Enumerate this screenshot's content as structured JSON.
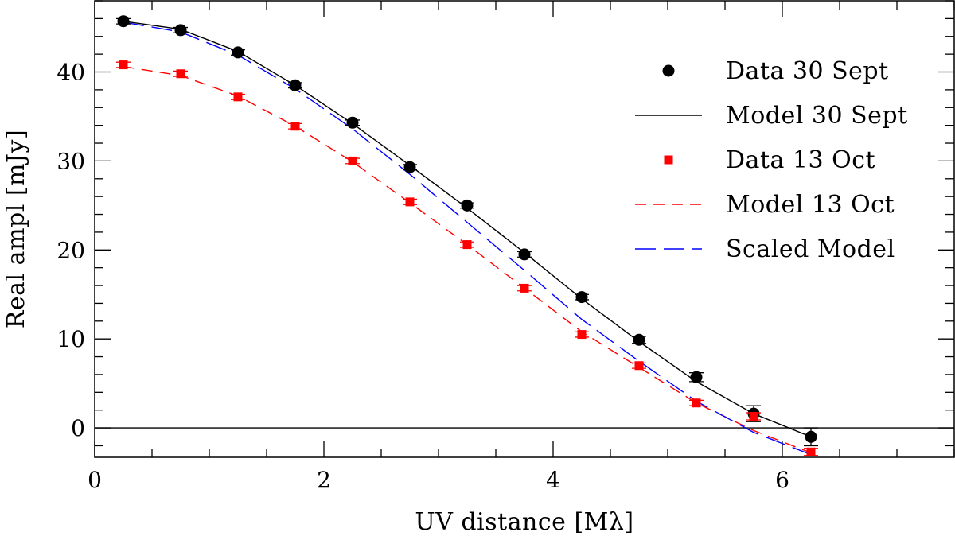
{
  "chart_data": {
    "type": "scatter",
    "xlabel": "UV distance [Mλ]",
    "ylabel": "Real ampl [mJy]",
    "xlim": [
      0,
      7.5
    ],
    "ylim": [
      -3.3,
      48
    ],
    "x_ticks": [
      0,
      2,
      4,
      6
    ],
    "x_tick_labels": [
      "0",
      "2",
      "4",
      "6"
    ],
    "y_ticks": [
      0,
      10,
      20,
      30,
      40
    ],
    "y_tick_labels": [
      "0",
      "10",
      "20",
      "30",
      "40"
    ],
    "reference_line_y": 0,
    "legend_position": "top-right",
    "series": [
      {
        "name": "Data 30 Sept",
        "kind": "points",
        "marker": "circle",
        "color": "#000000",
        "x": [
          0.25,
          0.75,
          1.25,
          1.75,
          2.25,
          2.75,
          3.25,
          3.75,
          4.25,
          4.75,
          5.25,
          5.75,
          6.25
        ],
        "y": [
          45.7,
          44.7,
          42.2,
          38.5,
          34.3,
          29.3,
          25.0,
          19.5,
          14.7,
          9.9,
          5.7,
          1.6,
          -1.0
        ],
        "err": [
          0.3,
          0.3,
          0.3,
          0.3,
          0.3,
          0.3,
          0.3,
          0.3,
          0.3,
          0.4,
          0.5,
          0.9,
          1.0
        ]
      },
      {
        "name": "Model 30 Sept",
        "kind": "line",
        "dash": "solid",
        "color": "#000000",
        "x": [
          0.25,
          0.75,
          1.25,
          1.75,
          2.25,
          2.75,
          3.25,
          3.75,
          4.25,
          4.75,
          5.25,
          5.75,
          6.25
        ],
        "y": [
          45.7,
          44.8,
          42.3,
          38.5,
          34.2,
          29.5,
          24.7,
          19.7,
          14.5,
          9.7,
          5.2,
          1.6,
          -1.0
        ]
      },
      {
        "name": "Data 13 Oct",
        "kind": "points",
        "marker": "square",
        "color": "#ff0000",
        "x": [
          0.25,
          0.75,
          1.25,
          1.75,
          2.25,
          2.75,
          3.25,
          3.75,
          4.25,
          4.75,
          5.25,
          5.75,
          6.25
        ],
        "y": [
          40.8,
          39.8,
          37.2,
          33.9,
          30.0,
          25.4,
          20.6,
          15.7,
          10.5,
          7.0,
          2.8,
          1.3,
          -2.7
        ],
        "err": [
          0.3,
          0.3,
          0.3,
          0.3,
          0.3,
          0.3,
          0.3,
          0.3,
          0.3,
          0.3,
          0.3,
          0.4,
          0.4
        ]
      },
      {
        "name": "Model 13 Oct",
        "kind": "line",
        "dash": "dashed",
        "color": "#ff0000",
        "x": [
          0.25,
          0.75,
          1.25,
          1.75,
          2.25,
          2.75,
          3.25,
          3.75,
          4.25,
          4.75,
          5.25,
          5.75,
          6.25
        ],
        "y": [
          40.6,
          39.6,
          37.3,
          33.9,
          29.9,
          25.3,
          20.6,
          15.7,
          10.8,
          6.8,
          2.8,
          -0.3,
          -2.8
        ]
      },
      {
        "name": "Scaled Model",
        "kind": "line",
        "dash": "long-dashed",
        "color": "#0000ff",
        "x": [
          0.25,
          0.75,
          1.25,
          1.75,
          2.25,
          2.75,
          3.25,
          3.75,
          4.25,
          4.75,
          5.25,
          5.75,
          6.25
        ],
        "y": [
          45.6,
          44.5,
          41.9,
          38.1,
          33.6,
          28.5,
          23.1,
          17.7,
          12.2,
          7.5,
          3.0,
          -0.5,
          -3.0
        ]
      }
    ]
  }
}
